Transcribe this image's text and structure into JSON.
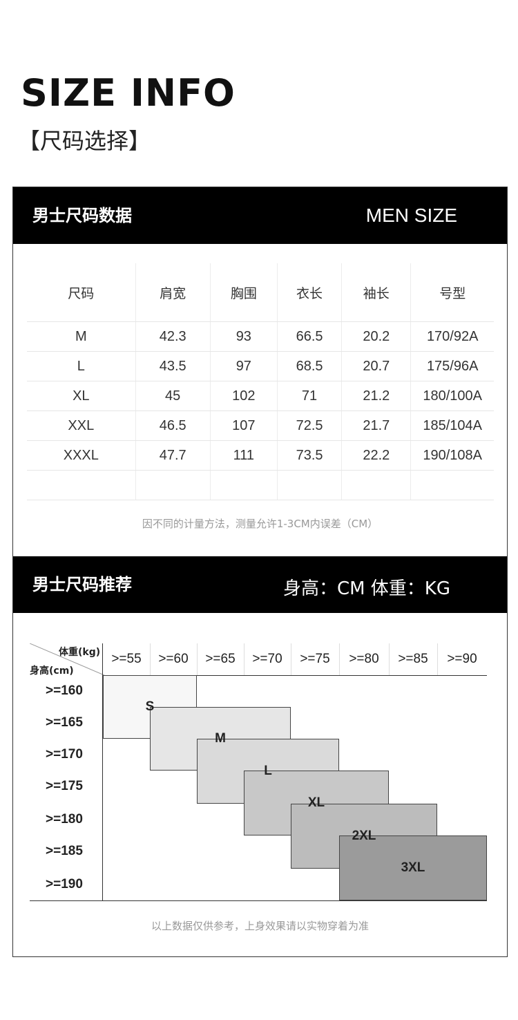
{
  "header": {
    "title": "SIZE INFO",
    "subtitle": "【尺码选择】"
  },
  "size_section": {
    "left_title": "男士尺码数据",
    "right_title": "MEN SIZE",
    "columns": [
      "尺码",
      "肩宽",
      "胸围",
      "衣长",
      "袖长",
      "号型"
    ],
    "rows": [
      [
        "M",
        "42.3",
        "93",
        "66.5",
        "20.2",
        "170/92A"
      ],
      [
        "L",
        "43.5",
        "97",
        "68.5",
        "20.7",
        "175/96A"
      ],
      [
        "XL",
        "45",
        "102",
        "71",
        "21.2",
        "180/100A"
      ],
      [
        "XXL",
        "46.5",
        "107",
        "72.5",
        "21.7",
        "185/104A"
      ],
      [
        "XXXL",
        "47.7",
        "111",
        "73.5",
        "22.2",
        "190/108A"
      ]
    ],
    "note": "因不同的计量方法，测量允许1-3CM内误差（CM）"
  },
  "recommend_section": {
    "left_title": "男士尺码推荐",
    "right_title": "身高：CM 体重：KG",
    "weight_axis_label": "体重(kg)",
    "height_axis_label": "身高(cm)",
    "weights": [
      ">=55",
      ">=60",
      ">=65",
      ">=70",
      ">=75",
      ">=80",
      ">=85",
      ">=90"
    ],
    "heights": [
      ">=160",
      ">=165",
      ">=170",
      ">=175",
      ">=180",
      ">=185",
      ">=190"
    ],
    "sizes": [
      {
        "label": "S",
        "color": "#f7f7f7"
      },
      {
        "label": "M",
        "color": "#e6e6e6"
      },
      {
        "label": "L",
        "color": "#dadada"
      },
      {
        "label": "XL",
        "color": "#c8c8c8"
      },
      {
        "label": "2XL",
        "color": "#bcbcbc"
      },
      {
        "label": "3XL",
        "color": "#9b9b9b"
      }
    ],
    "note": "以上数据仅供参考，上身效果请以实物穿着为准"
  }
}
